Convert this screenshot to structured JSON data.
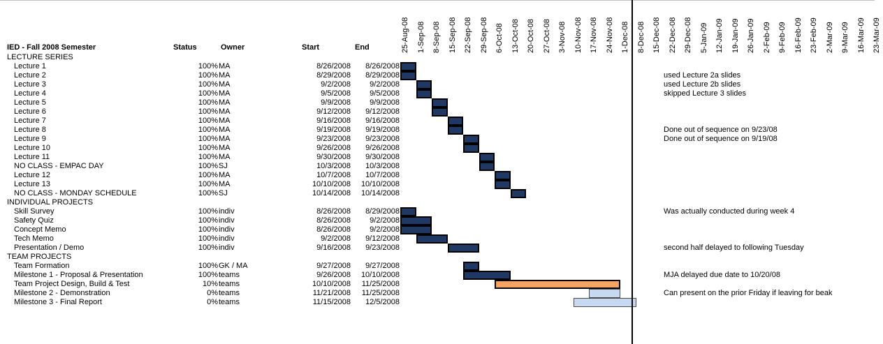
{
  "sheet": {
    "title": "IED - Fall 2008 Semester",
    "columns": {
      "status": "Status",
      "owner": "Owner",
      "start": "Start",
      "end": "End"
    },
    "week_labels": [
      "25-Aug-08",
      "1-Sep-08",
      "8-Sep-08",
      "15-Sep-08",
      "22-Sep-08",
      "29-Sep-08",
      "6-Oct-08",
      "13-Oct-08",
      "20-Oct-08",
      "27-Oct-08",
      "3-Nov-08",
      "10-Nov-08",
      "17-Nov-08",
      "24-Nov-08",
      "1-Dec-08",
      "8-Dec-08",
      "15-Dec-08",
      "22-Dec-08",
      "29-Dec-08",
      "5-Jan-09",
      "12-Jan-09",
      "19-Jan-09",
      "26-Jan-09",
      "2-Feb-09",
      "9-Feb-09",
      "16-Feb-09",
      "23-Feb-09",
      "2-Mar-09",
      "9-Mar-09",
      "16-Mar-09",
      "23-Mar-09"
    ],
    "colors": {
      "done": "#1f3864",
      "in_progress": "#f4a460",
      "not_started": "#c6d9f0"
    },
    "rows": [
      {
        "type": "section",
        "task": "LECTURE SERIES"
      },
      {
        "type": "task",
        "task": "Lecture 1",
        "status": "100%",
        "owner": "MA",
        "start": "8/26/2008",
        "end": "8/26/2008",
        "bar_start_day": 1,
        "bar_end_day": 1,
        "state": "done",
        "note": ""
      },
      {
        "type": "task",
        "task": "Lecture 2",
        "status": "100%",
        "owner": "MA",
        "start": "8/29/2008",
        "end": "8/29/2008",
        "bar_start_day": 1,
        "bar_end_day": 1,
        "state": "done",
        "note": "used Lecture 2a slides"
      },
      {
        "type": "task",
        "task": "Lecture 3",
        "status": "100%",
        "owner": "MA",
        "start": "9/2/2008",
        "end": "9/2/2008",
        "bar_start_day": 8,
        "bar_end_day": 8,
        "state": "done",
        "note": "used Lecture 2b slides"
      },
      {
        "type": "task",
        "task": "Lecture 4",
        "status": "100%",
        "owner": "MA",
        "start": "9/5/2008",
        "end": "9/5/2008",
        "bar_start_day": 8,
        "bar_end_day": 8,
        "state": "done",
        "note": "skipped Lecture 3 slides"
      },
      {
        "type": "task",
        "task": "Lecture 5",
        "status": "100%",
        "owner": "MA",
        "start": "9/9/2008",
        "end": "9/9/2008",
        "bar_start_day": 15,
        "bar_end_day": 15,
        "state": "done",
        "note": ""
      },
      {
        "type": "task",
        "task": "Lecture 6",
        "status": "100%",
        "owner": "MA",
        "start": "9/12/2008",
        "end": "9/12/2008",
        "bar_start_day": 15,
        "bar_end_day": 15,
        "state": "done",
        "note": ""
      },
      {
        "type": "task",
        "task": "Lecture 7",
        "status": "100%",
        "owner": "MA",
        "start": "9/16/2008",
        "end": "9/16/2008",
        "bar_start_day": 22,
        "bar_end_day": 22,
        "state": "done",
        "note": ""
      },
      {
        "type": "task",
        "task": "Lecture 8",
        "status": "100%",
        "owner": "MA",
        "start": "9/19/2008",
        "end": "9/19/2008",
        "bar_start_day": 22,
        "bar_end_day": 22,
        "state": "done",
        "note": "Done out of sequence on 9/23/08"
      },
      {
        "type": "task",
        "task": "Lecture 9",
        "status": "100%",
        "owner": "MA",
        "start": "9/23/2008",
        "end": "9/23/2008",
        "bar_start_day": 29,
        "bar_end_day": 29,
        "state": "done",
        "note": "Done out of sequence on 9/19/08"
      },
      {
        "type": "task",
        "task": "Lecture 10",
        "status": "100%",
        "owner": "MA",
        "start": "9/26/2008",
        "end": "9/26/2008",
        "bar_start_day": 29,
        "bar_end_day": 29,
        "state": "done",
        "note": ""
      },
      {
        "type": "task",
        "task": "Lecture 11",
        "status": "100%",
        "owner": "MA",
        "start": "9/30/2008",
        "end": "9/30/2008",
        "bar_start_day": 36,
        "bar_end_day": 36,
        "state": "done",
        "note": ""
      },
      {
        "type": "task",
        "task": "NO CLASS - EMPAC DAY",
        "status": "100%",
        "owner": "SJ",
        "start": "10/3/2008",
        "end": "10/3/2008",
        "bar_start_day": 36,
        "bar_end_day": 36,
        "state": "done",
        "note": ""
      },
      {
        "type": "task",
        "task": "Lecture 12",
        "status": "100%",
        "owner": "MA",
        "start": "10/7/2008",
        "end": "10/7/2008",
        "bar_start_day": 43,
        "bar_end_day": 43,
        "state": "done",
        "note": ""
      },
      {
        "type": "task",
        "task": "Lecture 13",
        "status": "100%",
        "owner": "MA",
        "start": "10/10/2008",
        "end": "10/10/2008",
        "bar_start_day": 43,
        "bar_end_day": 43,
        "state": "done",
        "note": ""
      },
      {
        "type": "task",
        "task": "NO CLASS - MONDAY SCHEDULE",
        "status": "100%",
        "owner": "SJ",
        "start": "10/14/2008",
        "end": "10/14/2008",
        "bar_start_day": 50,
        "bar_end_day": 50,
        "state": "done",
        "note": ""
      },
      {
        "type": "section",
        "task": "INDIVIDUAL PROJECTS"
      },
      {
        "type": "task",
        "task": "Skill Survey",
        "status": "100%",
        "owner": "indiv",
        "start": "8/26/2008",
        "end": "8/29/2008",
        "bar_start_day": 1,
        "bar_end_day": 1,
        "state": "done",
        "note": "Was actually conducted during week 4"
      },
      {
        "type": "task",
        "task": "Safety Quiz",
        "status": "100%",
        "owner": "indiv",
        "start": "8/26/2008",
        "end": "9/2/2008",
        "bar_start_day": 1,
        "bar_end_day": 8,
        "state": "done",
        "note": ""
      },
      {
        "type": "task",
        "task": "Concept Memo",
        "status": "100%",
        "owner": "indiv",
        "start": "8/26/2008",
        "end": "9/2/2008",
        "bar_start_day": 1,
        "bar_end_day": 8,
        "state": "done",
        "note": ""
      },
      {
        "type": "task",
        "task": "Tech Memo",
        "status": "100%",
        "owner": "indiv",
        "start": "9/2/2008",
        "end": "9/12/2008",
        "bar_start_day": 8,
        "bar_end_day": 15,
        "state": "done",
        "note": ""
      },
      {
        "type": "task",
        "task": "Presentation / Demo",
        "status": "100%",
        "owner": "indiv",
        "start": "9/16/2008",
        "end": "9/23/2008",
        "bar_start_day": 22,
        "bar_end_day": 29,
        "state": "done",
        "note": "second half delayed to following Tuesday"
      },
      {
        "type": "section",
        "task": "TEAM PROJECTS"
      },
      {
        "type": "task",
        "task": "Team Formation",
        "status": "100%",
        "owner": "GK / MA",
        "start": "9/27/2008",
        "end": "9/27/2008",
        "bar_start_day": 29,
        "bar_end_day": 29,
        "state": "done",
        "note": ""
      },
      {
        "type": "task",
        "task": "Milestone 1 - Proposal & Presentation",
        "status": "100%",
        "owner": "teams",
        "start": "9/26/2008",
        "end": "10/10/2008",
        "bar_start_day": 29,
        "bar_end_day": 43,
        "state": "done",
        "note": "MJA delayed due date to 10/20/08"
      },
      {
        "type": "task",
        "task": "Team Project Design, Build & Test",
        "status": "10%",
        "owner": "teams",
        "start": "10/10/2008",
        "end": "11/25/2008",
        "bar_start_day": 43,
        "bar_end_day": 92,
        "state": "in_progress",
        "note": ""
      },
      {
        "type": "task",
        "task": "Milestone 2 - Demonstration",
        "status": "0%",
        "owner": "teams",
        "start": "11/21/2008",
        "end": "11/25/2008",
        "bar_start_day": 85,
        "bar_end_day": 92,
        "state": "not_started",
        "note": "Can present on the prior Friday if leaving for beak"
      },
      {
        "type": "task",
        "task": "Milestone 3 - Final Report",
        "status": "0%",
        "owner": "teams",
        "start": "11/15/2008",
        "end": "12/5/2008",
        "bar_start_day": 78,
        "bar_end_day": 99,
        "state": "not_started",
        "note": ""
      }
    ]
  }
}
